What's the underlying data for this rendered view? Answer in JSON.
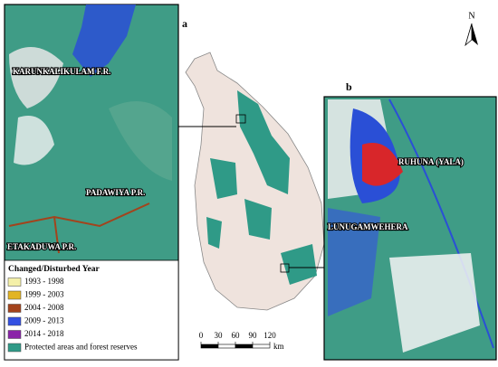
{
  "panels": {
    "a": {
      "tag": "a",
      "labels": [
        "KARUNKALIKULAM F.R.",
        "PADAWIYA P.R.",
        "ETAKADUWA P.R."
      ]
    },
    "b": {
      "tag": "b",
      "labels": [
        "RUHUNA (YALA)",
        "LUNUGAMWEHERA"
      ]
    }
  },
  "north": "N",
  "legend": {
    "title": "Changed/Disturbed Year",
    "items": [
      {
        "label": "1993 - 1998",
        "color": "#f4f0a8"
      },
      {
        "label": "1999 - 2003",
        "color": "#e2b424"
      },
      {
        "label": "2004 - 2008",
        "color": "#a3431c"
      },
      {
        "label": "2009 - 2013",
        "color": "#3350e2"
      },
      {
        "label": "2014 - 2018",
        "color": "#8a23a8"
      },
      {
        "label": "Protected areas and forest reserves",
        "color": "#2f9a87"
      }
    ]
  },
  "scale_bar": {
    "ticks": [
      0,
      30,
      60,
      90,
      120
    ],
    "unit": "km"
  }
}
